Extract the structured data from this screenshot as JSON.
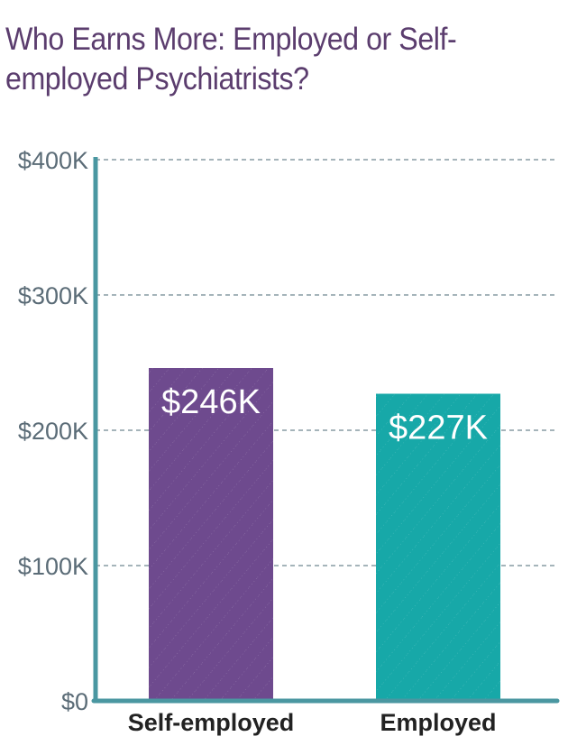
{
  "chart_data": {
    "type": "bar",
    "title": "Who Earns More: Employed or Self-employed Psychiatrists?",
    "categories": [
      "Self-employed",
      "Employed"
    ],
    "values": [
      246,
      227
    ],
    "data_labels": [
      "$246K",
      "$227K"
    ],
    "colors": [
      "#6e4a8e",
      "#17a8a8"
    ],
    "ylim": [
      0,
      400
    ],
    "yticks": [
      0,
      100,
      200,
      300,
      400
    ],
    "ytick_labels": [
      "$0",
      "$100K",
      "$200K",
      "$300K",
      "$400K"
    ],
    "xlabel": "",
    "ylabel": "",
    "grid": true,
    "axis_color": "#4a97a1"
  }
}
